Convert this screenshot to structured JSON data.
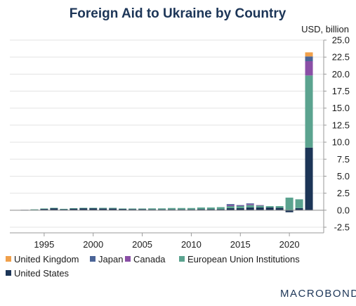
{
  "chart_data": {
    "type": "bar",
    "stacked": true,
    "title": "Foreign Aid to Ukraine by Country",
    "unit_label": "USD, billion",
    "xlabel": "",
    "ylabel": "",
    "ylim": [
      -2.5,
      25.0
    ],
    "xlim": [
      1991.5,
      2023.5
    ],
    "y_ticks": [
      "25.0",
      "22.5",
      "20.0",
      "17.5",
      "15.0",
      "12.5",
      "10.0",
      "7.5",
      "5.0",
      "2.5",
      "0.0",
      "-2.5"
    ],
    "x_ticks": [
      "1995",
      "2000",
      "2005",
      "2010",
      "2015",
      "2020"
    ],
    "grid": true,
    "legend_position": "bottom",
    "x": [
      1993,
      1994,
      1995,
      1996,
      1997,
      1998,
      1999,
      2000,
      2001,
      2002,
      2003,
      2004,
      2005,
      2006,
      2007,
      2008,
      2009,
      2010,
      2011,
      2012,
      2013,
      2014,
      2015,
      2016,
      2017,
      2018,
      2019,
      2020,
      2021,
      2022
    ],
    "series": [
      {
        "name": "United States",
        "color": "#1c3557",
        "values": [
          0.05,
          0.1,
          0.2,
          0.3,
          0.15,
          0.25,
          0.3,
          0.3,
          0.25,
          0.25,
          0.2,
          0.15,
          0.15,
          0.12,
          0.12,
          0.12,
          0.12,
          0.12,
          0.15,
          0.15,
          0.15,
          0.3,
          0.3,
          0.4,
          0.4,
          0.4,
          0.35,
          -0.3,
          0.3,
          9.2
        ]
      },
      {
        "name": "European Union Institutions",
        "color": "#5ba38f",
        "values": [
          0.0,
          0.02,
          0.05,
          0.05,
          0.05,
          0.05,
          0.05,
          0.05,
          0.1,
          0.1,
          0.05,
          0.1,
          0.1,
          0.15,
          0.15,
          0.2,
          0.2,
          0.2,
          0.25,
          0.25,
          0.3,
          0.3,
          0.3,
          0.35,
          0.3,
          0.2,
          0.25,
          1.85,
          1.3,
          10.6
        ]
      },
      {
        "name": "Canada",
        "color": "#8a4fa6",
        "values": [
          0.0,
          0.0,
          0.0,
          0.0,
          0.0,
          0.0,
          0.0,
          0.0,
          0.0,
          0.0,
          0.0,
          0.0,
          0.0,
          0.0,
          0.0,
          0.0,
          0.0,
          0.0,
          0.0,
          0.0,
          0.0,
          0.15,
          0.1,
          0.15,
          0.05,
          0.0,
          0.0,
          0.0,
          0.0,
          2.1
        ]
      },
      {
        "name": "Japan",
        "color": "#4a6497",
        "values": [
          0.0,
          0.0,
          0.0,
          0.0,
          0.0,
          0.0,
          0.0,
          0.0,
          0.0,
          0.0,
          0.0,
          0.0,
          0.0,
          0.0,
          0.0,
          0.0,
          0.0,
          0.0,
          0.0,
          0.0,
          0.0,
          0.15,
          0.05,
          0.1,
          0.0,
          0.0,
          0.0,
          0.0,
          0.0,
          0.7
        ]
      },
      {
        "name": "United Kingdom",
        "color": "#f0a04b",
        "values": [
          0.0,
          0.0,
          0.0,
          0.0,
          0.0,
          0.0,
          0.0,
          0.0,
          0.0,
          0.0,
          0.0,
          0.0,
          0.0,
          0.0,
          0.0,
          0.0,
          0.0,
          0.0,
          0.0,
          0.0,
          0.0,
          0.0,
          0.0,
          0.0,
          0.0,
          0.0,
          0.0,
          0.0,
          0.0,
          0.6
        ]
      }
    ],
    "legend_order": [
      "United Kingdom",
      "Japan",
      "Canada",
      "European Union Institutions",
      "United States"
    ]
  },
  "brand": {
    "name": "MACROBOND"
  }
}
